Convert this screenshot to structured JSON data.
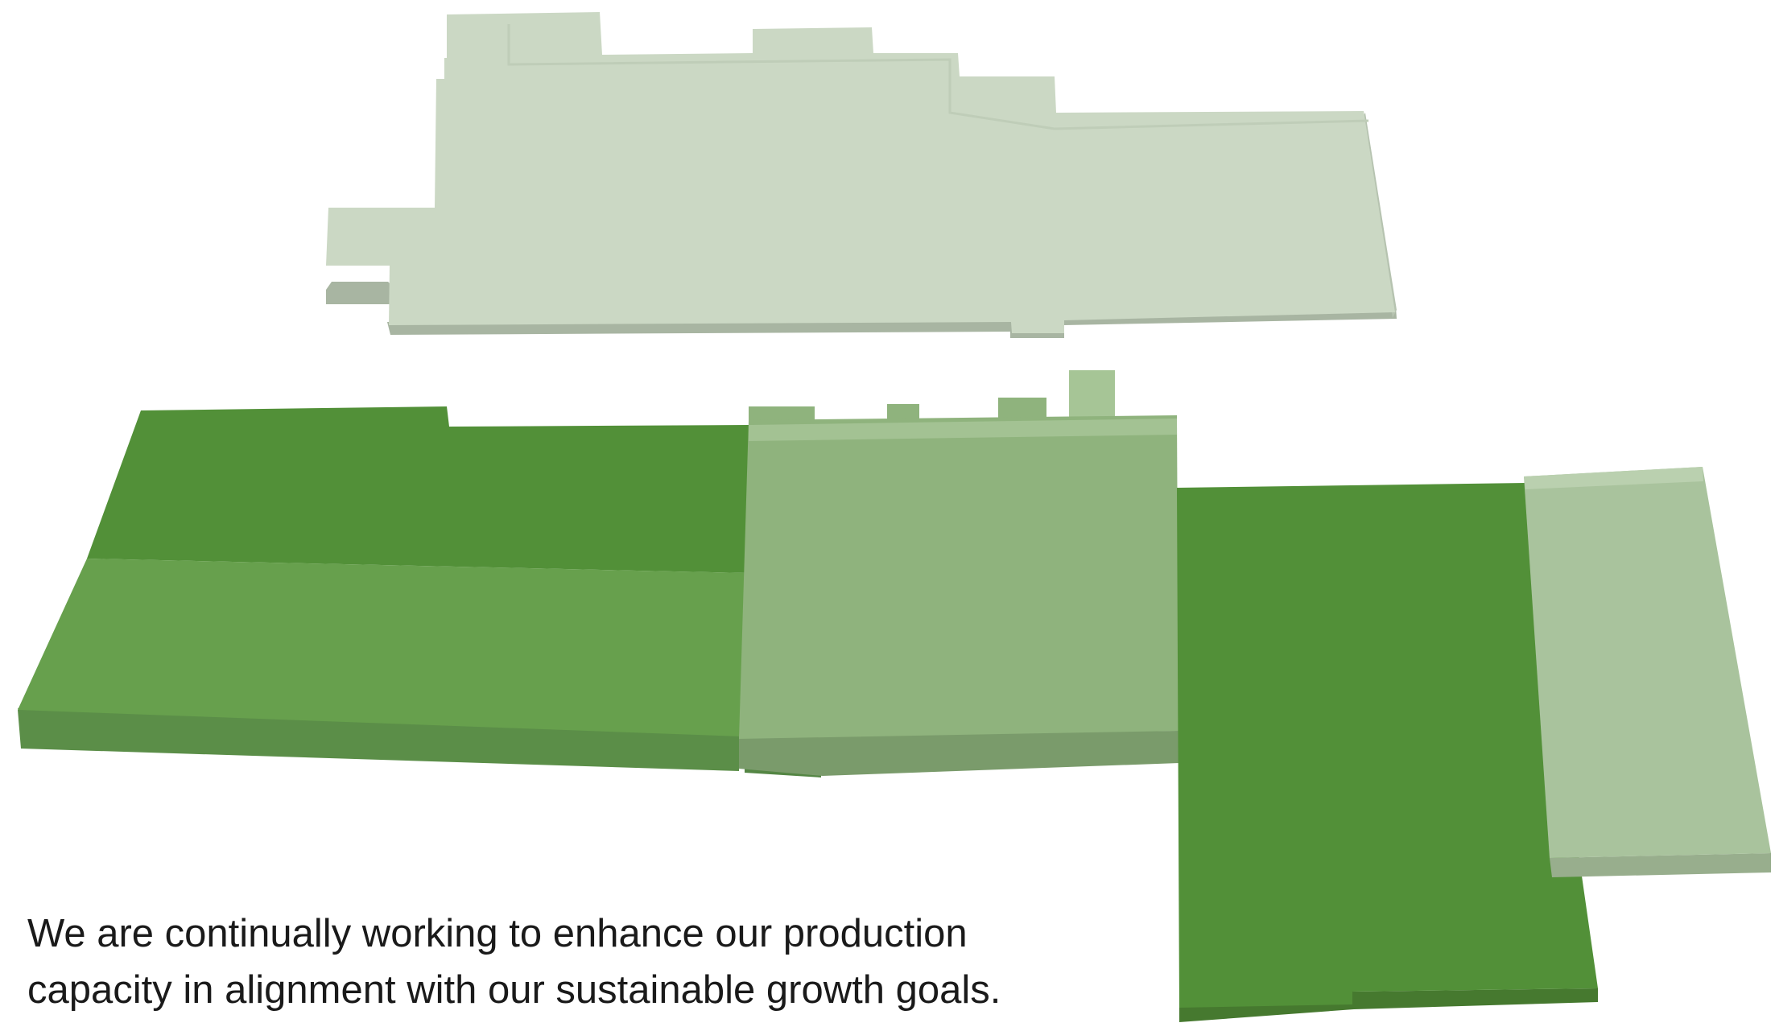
{
  "caption": {
    "line1": "We are continually working to enhance our production",
    "line2": "capacity in alignment with our sustainable growth goals."
  },
  "colors": {
    "existing_top": "#cbd8c4",
    "dark_green": "#529038",
    "medium_green": "#67a04d",
    "light_green": "#8fb37d",
    "pale_green": "#a9c39d",
    "text": "#1a1a1a"
  },
  "buildings": [
    {
      "name": "upper-building",
      "shade": "existing_top"
    },
    {
      "name": "left-building-rear",
      "shade": "dark_green"
    },
    {
      "name": "left-building-front",
      "shade": "medium_green"
    },
    {
      "name": "center-building",
      "shade": "light_green"
    },
    {
      "name": "right-building",
      "shade": "dark_green"
    },
    {
      "name": "far-right-building",
      "shade": "pale_green"
    }
  ]
}
